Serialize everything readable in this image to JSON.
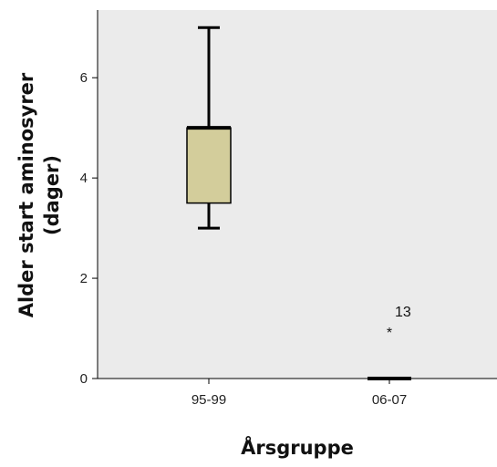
{
  "chart_data": {
    "type": "boxplot",
    "title": "",
    "xlabel": "Årsgruppe",
    "ylabel_lines": [
      "Alder start aminosyrer",
      "(dager)"
    ],
    "ylim": [
      0,
      7.35
    ],
    "yticks": [
      0,
      2,
      4,
      6
    ],
    "ytick_labels": [
      "0",
      "2",
      "4",
      "6"
    ],
    "grid": false,
    "box_color": "#d3cd9b",
    "plot_background": "#ebebeb",
    "categories": [
      "95-99",
      "06-07"
    ],
    "boxes": [
      {
        "category": "95-99",
        "min": 3,
        "q1": 3.5,
        "median": 5,
        "q3": 5,
        "max": 7
      },
      {
        "category": "06-07",
        "min": 0,
        "q1": 0,
        "median": 0,
        "q3": 0,
        "max": 0
      }
    ],
    "outliers": [
      {
        "category": "06-07",
        "value": 1,
        "marker": "*",
        "label": "13"
      }
    ]
  }
}
